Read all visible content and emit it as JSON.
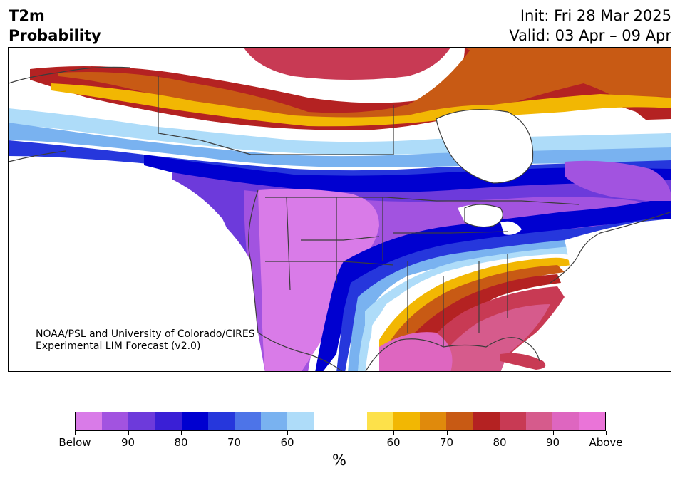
{
  "title": {
    "line1": "T2m",
    "line2": "Probability",
    "init": "Init: Fri 28 Mar 2025",
    "valid": "Valid: 03 Apr – 09 Apr"
  },
  "credit": {
    "line1": "NOAA/PSL and University of Colorado/CIRES",
    "line2": "Experimental LIM Forecast (v2.0)"
  },
  "colorbar": {
    "colors": [
      "#d97be8",
      "#a253e0",
      "#6d3adb",
      "#3a1fd6",
      "#0000d0",
      "#2637dc",
      "#4d74e8",
      "#79b2f0",
      "#aedcf9",
      "#ffffff",
      "#ffffff",
      "#fde14a",
      "#f2b703",
      "#e08a0c",
      "#c85a14",
      "#b42222",
      "#c83a54",
      "#d65b8c",
      "#de66c0",
      "#ea74d8"
    ],
    "labels": [
      "Below",
      "90",
      "80",
      "70",
      "60",
      "60",
      "70",
      "80",
      "90",
      "Above"
    ],
    "unit": "%"
  },
  "map": {
    "below_colors": {
      "c90": "#a253e0",
      "c80": "#3a1fd6",
      "c70": "#2637dc",
      "c60": "#79b2f0",
      "c50": "#aedcf9",
      "cmax": "#d97be8"
    },
    "above_colors": {
      "c55": "#fde14a",
      "c60": "#f2b703",
      "c65": "#e08a0c",
      "c70": "#c85a14",
      "c75": "#b42222",
      "c80": "#c83a54",
      "c85": "#d65b8c",
      "cmax": "#de66c0"
    },
    "border_color": "#3c3c3c"
  }
}
